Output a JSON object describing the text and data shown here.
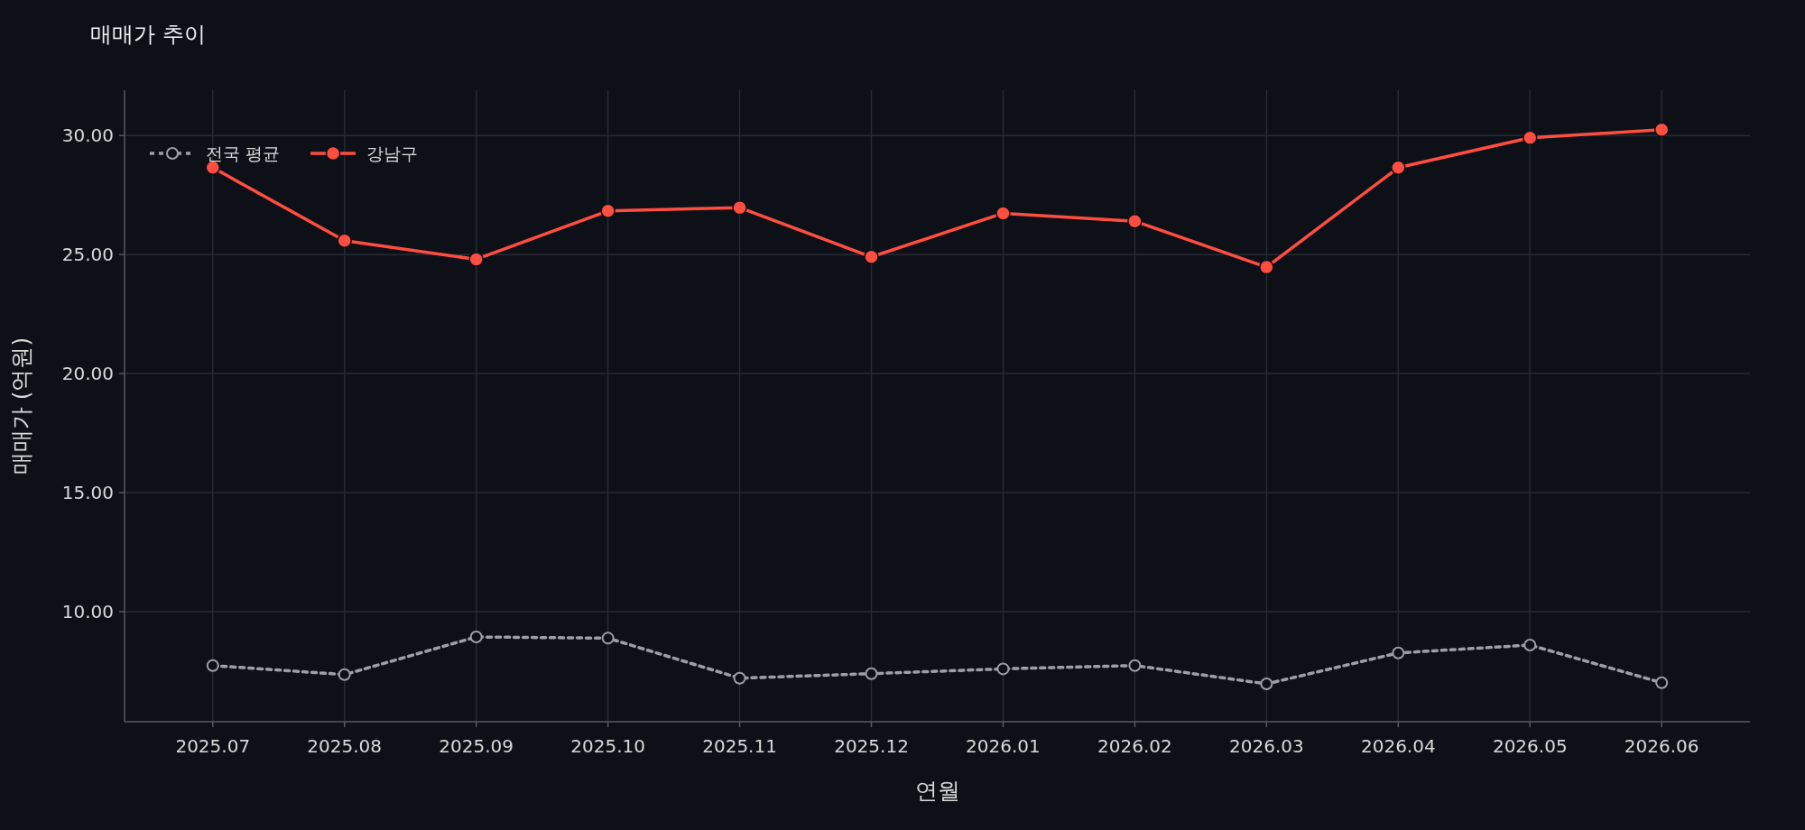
{
  "chart_data": {
    "type": "line",
    "title": "매매가 추이",
    "xlabel": "연월",
    "ylabel": "매매가 (억원)",
    "categories": [
      "2025.07",
      "2025.08",
      "2025.09",
      "2025.10",
      "2025.11",
      "2025.12",
      "2026.01",
      "2026.02",
      "2026.03",
      "2026.04",
      "2026.05",
      "2026.06"
    ],
    "series": [
      {
        "name": "전국 평균",
        "color": "#9aa0a6",
        "line_style": "dotted",
        "values": [
          7.74,
          7.36,
          8.94,
          8.89,
          7.21,
          7.4,
          7.6,
          7.74,
          6.97,
          8.27,
          8.6,
          7.02
        ]
      },
      {
        "name": "강남구",
        "color": "#ff4d40",
        "line_style": "solid",
        "values": [
          28.65,
          25.58,
          24.8,
          26.83,
          26.97,
          24.9,
          26.73,
          26.4,
          24.47,
          28.65,
          29.9,
          30.24
        ]
      }
    ],
    "ylim": [
      5.38,
      31.9
    ],
    "yticks": [
      {
        "value": 10,
        "label": "10.00"
      },
      {
        "value": 15,
        "label": "15.00"
      },
      {
        "value": 20,
        "label": "20.00"
      },
      {
        "value": 25,
        "label": "25.00"
      },
      {
        "value": 30,
        "label": "30.00"
      }
    ],
    "grid": true,
    "legend": "top left",
    "marker": "circle"
  }
}
